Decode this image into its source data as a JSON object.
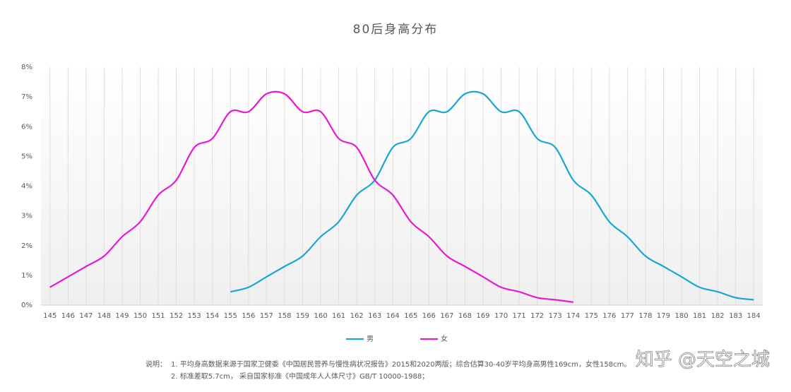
{
  "chart_data": {
    "type": "line",
    "title": "80后身高分布",
    "categories": [
      "145",
      "146",
      "147",
      "148",
      "149",
      "150",
      "151",
      "152",
      "153",
      "154",
      "155",
      "156",
      "157",
      "158",
      "159",
      "160",
      "161",
      "162",
      "163",
      "164",
      "165",
      "166",
      "167",
      "168",
      "169",
      "170",
      "171",
      "172",
      "173",
      "174",
      "175",
      "176",
      "177",
      "178",
      "179",
      "180",
      "181",
      "182",
      "183",
      "184"
    ],
    "series": [
      {
        "name": "男",
        "color": "#1aa6d1",
        "values": [
          null,
          null,
          null,
          null,
          null,
          null,
          null,
          null,
          null,
          null,
          0.45,
          0.6,
          0.95,
          1.3,
          1.65,
          2.3,
          2.8,
          3.7,
          4.2,
          5.3,
          5.6,
          6.5,
          6.5,
          7.1,
          7.1,
          6.5,
          6.5,
          5.6,
          5.3,
          4.2,
          3.7,
          2.8,
          2.3,
          1.65,
          1.3,
          0.95,
          0.6,
          0.45,
          0.25,
          0.18
        ]
      },
      {
        "name": "女",
        "color": "#e619d4",
        "values": [
          0.6,
          0.95,
          1.3,
          1.65,
          2.3,
          2.8,
          3.7,
          4.2,
          5.3,
          5.6,
          6.5,
          6.5,
          7.1,
          7.1,
          6.5,
          6.5,
          5.6,
          5.3,
          4.2,
          3.7,
          2.8,
          2.3,
          1.65,
          1.3,
          0.95,
          0.6,
          0.45,
          0.25,
          0.18,
          0.1,
          null,
          null,
          null,
          null,
          null,
          null,
          null,
          null,
          null,
          null
        ]
      }
    ],
    "ylim": [
      0,
      8
    ],
    "yticks": [
      {
        "value": 0,
        "label": "0%"
      },
      {
        "value": 1,
        "label": "1%"
      },
      {
        "value": 2,
        "label": "2%"
      },
      {
        "value": 3,
        "label": "3%"
      },
      {
        "value": 4,
        "label": "4%"
      },
      {
        "value": 5,
        "label": "5%"
      },
      {
        "value": 6,
        "label": "6%"
      },
      {
        "value": 7,
        "label": "7%"
      },
      {
        "value": 8,
        "label": "8%"
      }
    ],
    "grid": "vertical",
    "legend": "bottom",
    "notes": [
      "说明：",
      "1. 平均身高数据来源于国家卫健委《中国居民营养与慢性病状况报告》2015和2020两版；综合估算30-40岁平均身高男性169cm，女性158cm。",
      "2.  标准差取5.7cm，  采自国家标准《中国成年人人体尺寸》GB/T 10000-1988；"
    ],
    "watermark": "知乎 @天空之城"
  }
}
